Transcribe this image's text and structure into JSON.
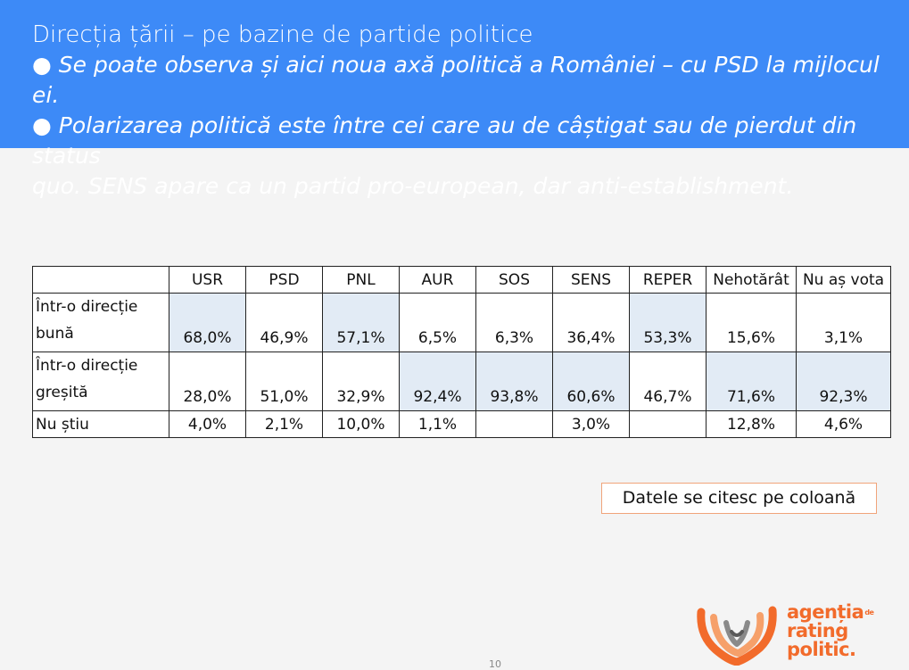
{
  "header": {
    "title": "Direcția țării – pe bazine de partide politice",
    "bullet1": "● Se poate observa și aici noua axă politică a României – cu PSD la mijlocul ei.",
    "bullet2_line1": "● Polarizarea politică este între cei care au de câștigat sau de pierdut din status",
    "bullet2_line2": "quo. SENS apare ca un partid pro-european, dar anti-establishment."
  },
  "table": {
    "columns": [
      "USR",
      "PSD",
      "PNL",
      "AUR",
      "SOS",
      "SENS",
      "REPER",
      "Nehotărât",
      "Nu aș vota"
    ],
    "rows": [
      {
        "label_line1": "Într-o direcție",
        "label_line2": "bună",
        "values": [
          "68,0%",
          "46,9%",
          "57,1%",
          "6,5%",
          "6,3%",
          "36,4%",
          "53,3%",
          "15,6%",
          "3,1%"
        ]
      },
      {
        "label_line1": "Într-o direcție",
        "label_line2": "greșită",
        "values": [
          "28,0%",
          "51,0%",
          "32,9%",
          "92,4%",
          "93,8%",
          "60,6%",
          "46,7%",
          "71,6%",
          "92,3%"
        ]
      },
      {
        "label_line1": "Nu știu",
        "values": [
          "4,0%",
          "2,1%",
          "10,0%",
          "1,1%",
          "",
          "3,0%",
          "",
          "12,8%",
          "4,6%"
        ]
      }
    ]
  },
  "note": "Datele se citesc pe coloană",
  "logo": {
    "line1": "agenția",
    "de": "de",
    "line2": "rating",
    "line3": "politic."
  },
  "page_number": "10",
  "colors": {
    "header_bg": "#3d8af7",
    "highlight": "#e2ebf5",
    "logo_orange": "#f26b2b"
  }
}
